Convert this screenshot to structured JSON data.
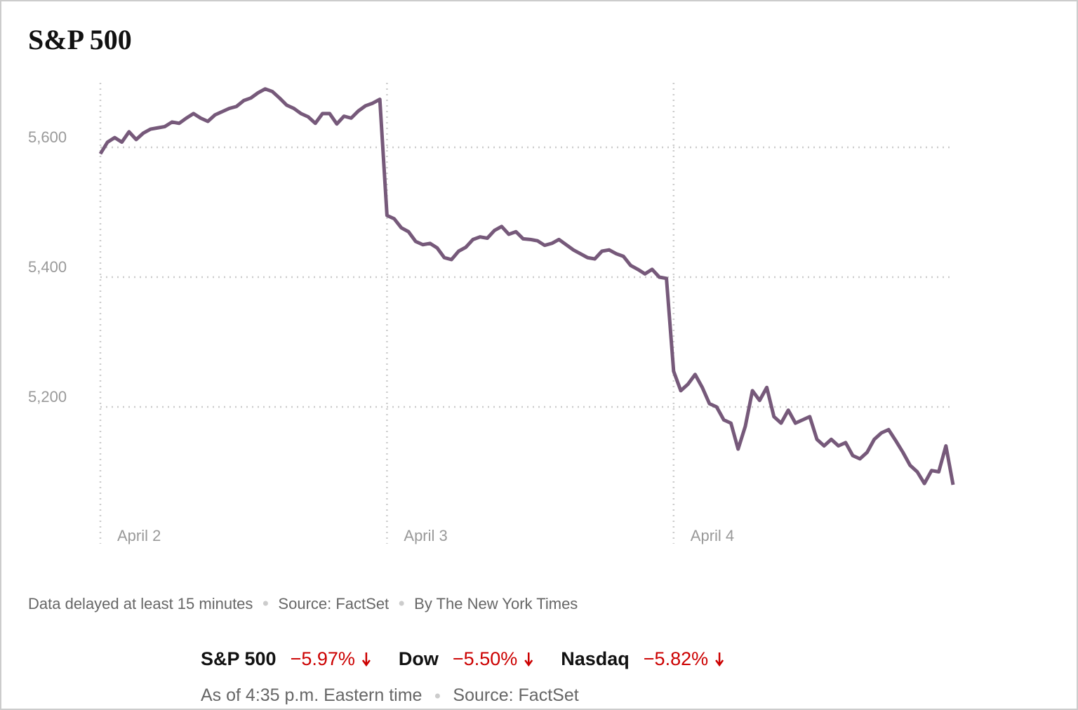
{
  "chart_data": {
    "type": "line",
    "title": "S&P 500",
    "categories": [
      "April 2",
      null,
      null,
      null,
      null,
      null,
      null,
      null,
      null,
      null,
      null,
      null,
      null,
      null,
      null,
      null,
      null,
      null,
      null,
      null,
      null,
      null,
      null,
      null,
      null,
      null,
      null,
      null,
      null,
      null,
      null,
      null,
      null,
      null,
      null,
      null,
      null,
      null,
      null,
      null,
      "April 3",
      null,
      null,
      null,
      null,
      null,
      null,
      null,
      null,
      null,
      null,
      null,
      null,
      null,
      null,
      null,
      null,
      null,
      null,
      null,
      null,
      null,
      null,
      null,
      null,
      null,
      null,
      null,
      null,
      null,
      null,
      null,
      null,
      null,
      null,
      null,
      null,
      null,
      null,
      null,
      "April 4",
      null,
      null,
      null,
      null,
      null,
      null,
      null,
      null,
      null,
      null,
      null,
      null,
      null,
      null,
      null,
      null,
      null,
      null,
      null,
      null,
      null,
      null,
      null,
      null,
      null,
      null,
      null,
      null,
      null,
      null,
      null,
      null,
      null,
      null,
      null,
      null,
      null,
      null,
      null
    ],
    "series": [
      {
        "name": "S&P 500",
        "color": "#76597a",
        "values": [
          5590,
          5608,
          5615,
          5608,
          5624,
          5612,
          5622,
          5628,
          5630,
          5632,
          5639,
          5637,
          5645,
          5652,
          5645,
          5640,
          5650,
          5655,
          5660,
          5663,
          5672,
          5676,
          5684,
          5690,
          5686,
          5676,
          5665,
          5660,
          5652,
          5647,
          5637,
          5652,
          5652,
          5636,
          5648,
          5645,
          5656,
          5664,
          5668,
          5674,
          5495,
          5490,
          5476,
          5470,
          5455,
          5450,
          5452,
          5445,
          5430,
          5427,
          5440,
          5446,
          5458,
          5462,
          5460,
          5472,
          5478,
          5466,
          5470,
          5459,
          5458,
          5456,
          5449,
          5452,
          5458,
          5450,
          5442,
          5436,
          5430,
          5428,
          5440,
          5442,
          5436,
          5432,
          5418,
          5412,
          5405,
          5412,
          5400,
          5398,
          5255,
          5225,
          5235,
          5250,
          5230,
          5205,
          5200,
          5180,
          5175,
          5135,
          5170,
          5225,
          5210,
          5230,
          5185,
          5175,
          5195,
          5175,
          5180,
          5185,
          5150,
          5140,
          5150,
          5140,
          5145,
          5125,
          5120,
          5130,
          5150,
          5160,
          5165,
          5148,
          5130,
          5110,
          5100,
          5082,
          5102,
          5100,
          5140,
          5080
        ]
      }
    ],
    "ylim": [
      5000,
      5720
    ],
    "yticks": [
      {
        "value": 5200,
        "label": "5,200"
      },
      {
        "value": 5400,
        "label": "5,400"
      },
      {
        "value": 5600,
        "label": "5,600"
      }
    ],
    "grid": true,
    "footnotes": [
      "Data delayed at least 15 minutes",
      "Source: FactSet",
      "By The New York Times"
    ],
    "tickers": [
      {
        "name": "S&P 500",
        "change": "−5.97%"
      },
      {
        "name": "Dow",
        "change": "−5.50%"
      },
      {
        "name": "Nasdaq",
        "change": "−5.82%"
      }
    ],
    "ticker_notes": [
      "As of 4:35 p.m. Eastern time",
      "Source: FactSet"
    ]
  }
}
